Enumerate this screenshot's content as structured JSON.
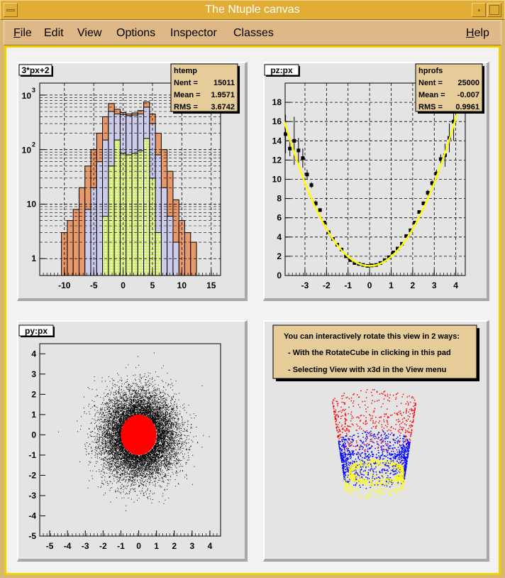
{
  "window": {
    "title": "The Ntuple canvas"
  },
  "menu": [
    {
      "label": "File"
    },
    {
      "label": "Edit"
    },
    {
      "label": "View"
    },
    {
      "label": "Options"
    },
    {
      "label": "Inspector"
    },
    {
      "label": "Classes"
    },
    {
      "label": "Help"
    }
  ],
  "colors": {
    "titlebar": "#e2ad35",
    "menubar": "#deb887",
    "pad": "#e4e4e4",
    "stats": "#e6cc99",
    "hist_outer": "#e8996a",
    "hist_middle": "#ccccea",
    "hist_inner": "#d4ec7a",
    "fit": "#ffff00",
    "highlight": "#ff0000",
    "ring": "#ffff00",
    "cup_mid": "#0000ff"
  },
  "chart_data": [
    {
      "type": "bar",
      "pad_title": "3*px+2",
      "ylog": true,
      "xlim": [
        -14.2,
        16.6
      ],
      "ylim": [
        0.49,
        1660
      ],
      "grid": true,
      "xticks": [
        "-10",
        "-5",
        "0",
        "5",
        "10",
        "15"
      ],
      "xtick_values": [
        -10,
        -5,
        0,
        5,
        10,
        15
      ],
      "yticks": [
        "1",
        "10",
        "10^2",
        "10^3"
      ],
      "ytick_values": [
        1,
        10,
        100,
        1000
      ],
      "bin_edges_start": -10,
      "bin_width": 1,
      "series": [
        {
          "values": [
            3,
            5,
            8,
            20,
            50,
            100,
            200,
            400,
            700,
            550,
            480,
            450,
            470,
            520,
            750,
            450,
            200,
            100,
            40,
            12,
            5,
            3,
            2
          ]
        },
        {
          "values": [
            0,
            0,
            0,
            0,
            8,
            20,
            60,
            150,
            500,
            450,
            440,
            420,
            430,
            450,
            600,
            300,
            80,
            20,
            6,
            2,
            0,
            0,
            0
          ]
        },
        {
          "values": [
            0,
            0,
            0,
            0,
            0,
            0,
            0,
            6,
            50,
            150,
            85,
            80,
            85,
            95,
            160,
            30,
            3,
            0,
            0,
            0,
            0,
            0,
            0
          ]
        }
      ],
      "stats": {
        "name": "htemp",
        "rows": [
          {
            "label": "Nent",
            "value": "15011"
          },
          {
            "label": "Mean",
            "value": "1.9571"
          },
          {
            "label": "RMS",
            "value": "3.6742"
          }
        ]
      }
    },
    {
      "type": "scatter",
      "pad_title": "pz:px",
      "xlim": [
        -3.92,
        4.44
      ],
      "ylim": [
        0,
        20
      ],
      "grid": true,
      "xticks": [
        "-3",
        "-2",
        "-1",
        "0",
        "1",
        "2",
        "3",
        "4"
      ],
      "xtick_values": [
        -3,
        -2,
        -1,
        0,
        1,
        2,
        3,
        4
      ],
      "yticks": [
        "0",
        "2",
        "4",
        "6",
        "8",
        "10",
        "12",
        "14",
        "16",
        "18"
      ],
      "ytick_values": [
        0,
        2,
        4,
        6,
        8,
        10,
        12,
        14,
        16,
        18
      ],
      "points": {
        "x": [
          -3.9,
          -3.7,
          -3.5,
          -3.3,
          -3.1,
          -2.9,
          -2.7,
          -2.5,
          -2.3,
          -2.1,
          -1.9,
          -1.7,
          -1.5,
          -1.3,
          -1.1,
          -0.9,
          -0.7,
          -0.5,
          -0.3,
          -0.1,
          0.1,
          0.3,
          0.5,
          0.7,
          0.9,
          1.1,
          1.3,
          1.5,
          1.7,
          1.9,
          2.1,
          2.3,
          2.5,
          2.7,
          2.9,
          3.1,
          3.3,
          3.5,
          3.7,
          3.9
        ],
        "y": [
          14.7,
          13.2,
          14.0,
          13.0,
          12.2,
          10.5,
          9.4,
          7.5,
          6.8,
          5.5,
          4.5,
          3.8,
          3.2,
          2.7,
          2.0,
          1.6,
          1.3,
          1.2,
          1.1,
          1.0,
          1.05,
          1.1,
          1.3,
          1.6,
          1.9,
          2.4,
          2.8,
          3.3,
          4.1,
          4.7,
          5.5,
          6.6,
          7.5,
          8.6,
          9.6,
          10.6,
          12.1,
          12.5,
          14.3,
          16.0
        ],
        "err": [
          2,
          0.8,
          2.5,
          1.3,
          1,
          0.5,
          0.3,
          0.3,
          0.2,
          0.2,
          0.15,
          0.1,
          0.1,
          0.1,
          0.1,
          0.1,
          0.1,
          0.1,
          0.1,
          0.1,
          0.1,
          0.1,
          0.1,
          0.1,
          0.1,
          0.1,
          0.1,
          0.1,
          0.1,
          0.1,
          0.15,
          0.15,
          0.2,
          0.3,
          0.3,
          0.4,
          0.5,
          1.2,
          1.5,
          2
        ]
      },
      "fit_curve": {
        "x": [
          -3.95,
          -3,
          -2,
          -1,
          0,
          1,
          2,
          3,
          4.05
        ],
        "y": [
          15.1,
          10,
          5,
          2,
          1,
          2,
          5,
          10,
          16.6
        ]
      },
      "stats": {
        "name": "hprofs",
        "rows": [
          {
            "label": "Nent",
            "value": "25000"
          },
          {
            "label": "Mean",
            "value": "-0.007"
          },
          {
            "label": "RMS",
            "value": "0.9961"
          }
        ]
      }
    },
    {
      "type": "scatter",
      "pad_title": "py:px",
      "xlim": [
        -5.56,
        4.6
      ],
      "ylim": [
        -5,
        4.5
      ],
      "grid": false,
      "xticks": [
        "-5",
        "-4",
        "-3",
        "-2",
        "-1",
        "0",
        "1",
        "2",
        "3",
        "4"
      ],
      "xtick_values": [
        -5,
        -4,
        -3,
        -2,
        -1,
        0,
        1,
        2,
        3,
        4
      ],
      "yticks": [
        "-5",
        "-4",
        "-3",
        "-2",
        "-1",
        "0",
        "1",
        "2",
        "3",
        "4"
      ],
      "ytick_values": [
        -5,
        -4,
        -3,
        -2,
        -1,
        0,
        1,
        2,
        3,
        4
      ],
      "highlight_radius": 1
    }
  ],
  "view3d": {
    "lines": [
      "You can interactively rotate this view in 2 ways:",
      "- With the RotateCube in clicking in this pad",
      "- Selecting View with x3d in the View menu"
    ]
  }
}
